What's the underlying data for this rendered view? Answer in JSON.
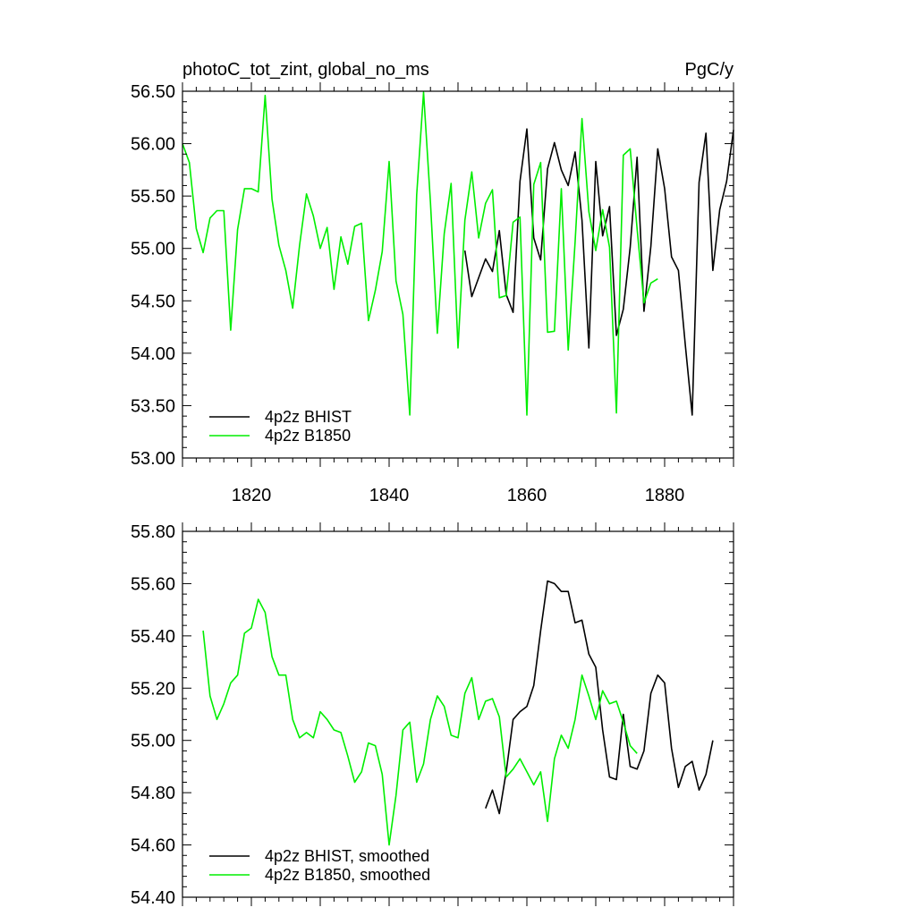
{
  "chart_data": [
    {
      "type": "line",
      "title": "photoC_tot_zint, global_no_ms",
      "units": "PgC/y",
      "xlim": [
        1810,
        1890
      ],
      "ylim": [
        53.0,
        56.5
      ],
      "xticks": [
        1820,
        1840,
        1860,
        1880
      ],
      "xtick_labels": [
        "1820",
        "1840",
        "1860",
        "1880"
      ],
      "yticks": [
        53.0,
        53.5,
        54.0,
        54.5,
        55.0,
        55.5,
        56.0,
        56.5
      ],
      "ytick_labels": [
        "53.00",
        "53.50",
        "54.00",
        "54.50",
        "55.00",
        "55.50",
        "56.00",
        "56.50"
      ],
      "legend_position": "bottom-left",
      "series": [
        {
          "name": "4p2z BHIST",
          "color": "#000000",
          "x": [
            1851,
            1852,
            1853,
            1854,
            1855,
            1856,
            1857,
            1858,
            1859,
            1860,
            1861,
            1862,
            1863,
            1864,
            1865,
            1866,
            1867,
            1868,
            1869,
            1870,
            1871,
            1872,
            1873,
            1874,
            1875,
            1876,
            1877,
            1878,
            1879,
            1880,
            1881,
            1882,
            1883,
            1884,
            1885,
            1886,
            1887,
            1888,
            1889,
            1890
          ],
          "y": [
            54.98,
            54.54,
            54.72,
            54.9,
            54.78,
            55.17,
            54.56,
            54.39,
            55.64,
            56.14,
            55.1,
            54.89,
            55.76,
            56.01,
            55.75,
            55.6,
            55.92,
            55.27,
            54.05,
            55.83,
            55.12,
            55.4,
            54.17,
            54.42,
            55.01,
            55.87,
            54.4,
            55.02,
            55.95,
            55.57,
            54.92,
            54.79,
            54.08,
            53.41,
            55.63,
            56.1,
            54.79,
            55.37,
            55.64,
            56.13
          ]
        },
        {
          "name": "4p2z B1850",
          "color": "#00ee00",
          "x": [
            1810,
            1811,
            1812,
            1813,
            1814,
            1815,
            1816,
            1817,
            1818,
            1819,
            1820,
            1821,
            1822,
            1823,
            1824,
            1825,
            1826,
            1827,
            1828,
            1829,
            1830,
            1831,
            1832,
            1833,
            1834,
            1835,
            1836,
            1837,
            1838,
            1839,
            1840,
            1841,
            1842,
            1843,
            1844,
            1845,
            1846,
            1847,
            1848,
            1849,
            1850,
            1851,
            1852,
            1853,
            1854,
            1855,
            1856,
            1857,
            1858,
            1859,
            1860,
            1861,
            1862,
            1863,
            1864,
            1865,
            1866,
            1867,
            1868,
            1869,
            1870,
            1871,
            1872,
            1873,
            1874,
            1875,
            1876,
            1877,
            1878,
            1879
          ],
          "y": [
            56.0,
            55.82,
            55.19,
            54.96,
            55.29,
            55.36,
            55.36,
            54.22,
            55.18,
            55.57,
            55.57,
            55.54,
            56.46,
            55.47,
            55.03,
            54.79,
            54.43,
            55.03,
            55.52,
            55.31,
            55.0,
            55.2,
            54.61,
            55.11,
            54.85,
            55.21,
            55.24,
            54.31,
            54.6,
            54.97,
            55.83,
            54.69,
            54.37,
            53.41,
            55.51,
            56.49,
            55.44,
            54.19,
            55.14,
            55.62,
            54.05,
            55.27,
            55.73,
            55.1,
            55.43,
            55.56,
            54.53,
            54.55,
            55.25,
            55.3,
            53.41,
            55.61,
            55.82,
            54.2,
            54.21,
            55.57,
            54.03,
            55.06,
            56.24,
            55.35,
            54.98,
            55.37,
            55.01,
            53.43,
            55.89,
            55.95,
            55.19,
            54.48,
            54.67,
            54.71
          ]
        }
      ]
    },
    {
      "type": "line",
      "xlim": [
        1810,
        1890
      ],
      "ylim": [
        54.4,
        55.8
      ],
      "xticks": [
        1820,
        1840,
        1860,
        1880
      ],
      "yticks": [
        54.4,
        54.6,
        54.8,
        55.0,
        55.2,
        55.4,
        55.6,
        55.8
      ],
      "ytick_labels": [
        "54.40",
        "54.60",
        "54.80",
        "55.00",
        "55.20",
        "55.40",
        "55.60",
        "55.80"
      ],
      "legend_position": "bottom-left",
      "series": [
        {
          "name": "4p2z BHIST, smoothed",
          "color": "#000000",
          "x": [
            1854,
            1855,
            1856,
            1857,
            1858,
            1859,
            1860,
            1861,
            1862,
            1863,
            1864,
            1865,
            1866,
            1867,
            1868,
            1869,
            1870,
            1871,
            1872,
            1873,
            1874,
            1875,
            1876,
            1877,
            1878,
            1879,
            1880,
            1881,
            1882,
            1883,
            1884,
            1885,
            1886,
            1887
          ],
          "y": [
            54.74,
            54.81,
            54.72,
            54.88,
            55.08,
            55.11,
            55.13,
            55.21,
            55.42,
            55.61,
            55.6,
            55.57,
            55.57,
            55.45,
            55.46,
            55.33,
            55.28,
            55.04,
            54.86,
            54.85,
            55.1,
            54.9,
            54.89,
            54.96,
            55.18,
            55.25,
            55.22,
            54.97,
            54.82,
            54.9,
            54.92,
            54.81,
            54.87,
            55.0
          ]
        },
        {
          "name": "4p2z B1850, smoothed",
          "color": "#00ee00",
          "x": [
            1813,
            1814,
            1815,
            1816,
            1817,
            1818,
            1819,
            1820,
            1821,
            1822,
            1823,
            1824,
            1825,
            1826,
            1827,
            1828,
            1829,
            1830,
            1831,
            1832,
            1833,
            1834,
            1835,
            1836,
            1837,
            1838,
            1839,
            1840,
            1841,
            1842,
            1843,
            1844,
            1845,
            1846,
            1847,
            1848,
            1849,
            1850,
            1851,
            1852,
            1853,
            1854,
            1855,
            1856,
            1857,
            1858,
            1859,
            1860,
            1861,
            1862,
            1863,
            1864,
            1865,
            1866,
            1867,
            1868,
            1869,
            1870,
            1871,
            1872,
            1873,
            1874,
            1875,
            1876
          ],
          "y": [
            55.42,
            55.17,
            55.08,
            55.14,
            55.22,
            55.25,
            55.41,
            55.43,
            55.54,
            55.49,
            55.32,
            55.25,
            55.25,
            55.08,
            55.01,
            55.03,
            55.01,
            55.11,
            55.08,
            55.04,
            55.03,
            54.94,
            54.84,
            54.88,
            54.99,
            54.98,
            54.87,
            54.6,
            54.79,
            55.04,
            55.07,
            54.84,
            54.91,
            55.08,
            55.17,
            55.13,
            55.02,
            55.01,
            55.18,
            55.24,
            55.08,
            55.15,
            55.16,
            55.09,
            54.86,
            54.89,
            54.93,
            54.88,
            54.83,
            54.88,
            54.69,
            54.93,
            55.02,
            54.97,
            55.08,
            55.25,
            55.17,
            55.08,
            55.19,
            55.14,
            55.15,
            55.07,
            54.98,
            54.95
          ]
        }
      ]
    }
  ]
}
